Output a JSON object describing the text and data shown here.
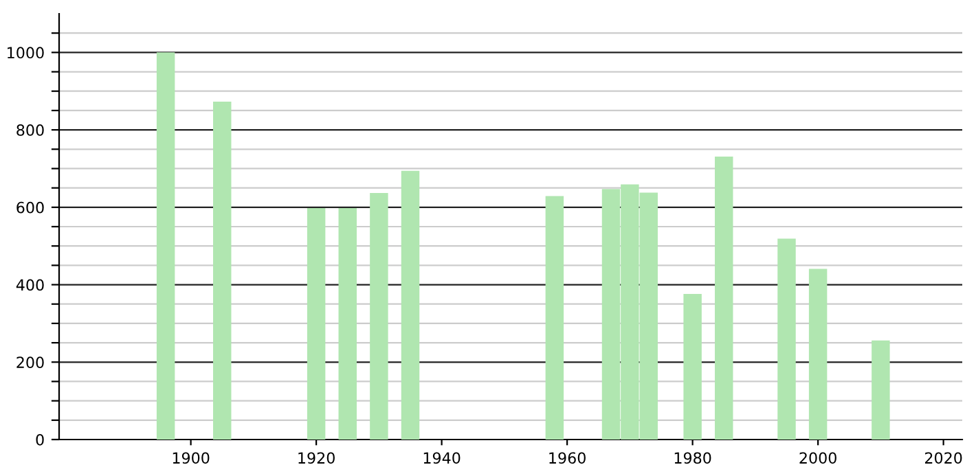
{
  "chart_data": {
    "type": "bar",
    "x": [
      1896,
      1905,
      1920,
      1925,
      1930,
      1935,
      1958,
      1967,
      1970,
      1973,
      1980,
      1985,
      1995,
      2000,
      2010
    ],
    "values": [
      1000,
      873,
      598,
      598,
      637,
      694,
      629,
      647,
      659,
      638,
      376,
      731,
      519,
      441,
      256
    ],
    "color": "#b0e6b0",
    "xlim": [
      1879,
      2023
    ],
    "xticks": [
      1900,
      1920,
      1940,
      1960,
      1980,
      2000,
      2020
    ],
    "ylim": [
      0,
      1100
    ],
    "yticks": [
      0,
      {
        "value": 50,
        "label": null
      },
      {
        "value": 100,
        "label": null
      },
      {
        "value": 150,
        "label": null
      },
      200,
      {
        "value": 250,
        "label": null
      },
      {
        "value": 300,
        "label": null
      },
      {
        "value": 350,
        "label": null
      },
      400,
      {
        "value": 450,
        "label": null
      },
      {
        "value": 500,
        "label": null
      },
      {
        "value": 550,
        "label": null
      },
      600,
      {
        "value": 650,
        "label": null
      },
      {
        "value": 700,
        "label": null
      },
      {
        "value": 750,
        "label": null
      },
      800,
      {
        "value": 850,
        "label": null
      },
      {
        "value": 900,
        "label": null
      },
      {
        "value": 950,
        "label": null
      },
      1000,
      {
        "value": 1050,
        "label": null
      }
    ],
    "grid": "y"
  }
}
